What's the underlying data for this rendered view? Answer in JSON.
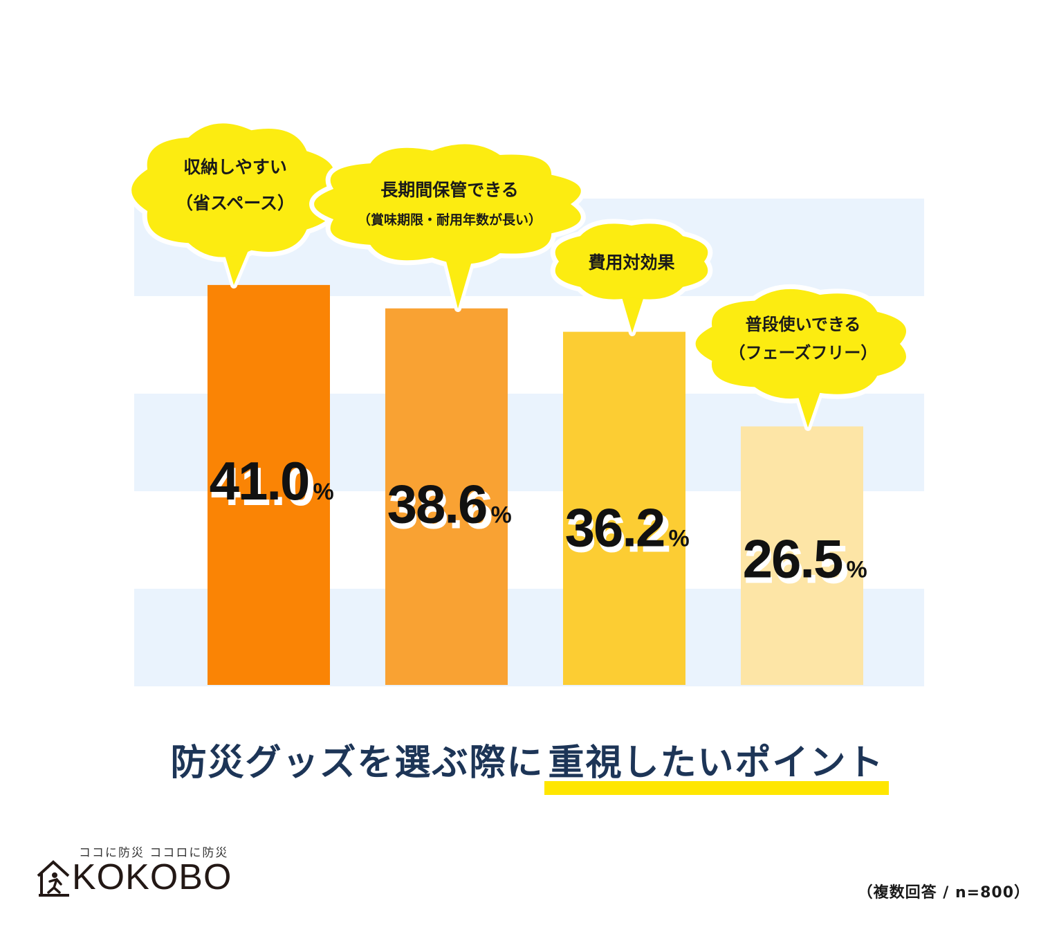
{
  "chart_data": {
    "type": "bar",
    "categories": [
      [
        "収納しやすい",
        "（省スペース）"
      ],
      [
        "長期間保管できる",
        "（賞味期限・耐用年数が長い）"
      ],
      [
        "費用対効果"
      ],
      [
        "普段使いできる",
        "（フェーズフリー）"
      ]
    ],
    "values": [
      41.0,
      38.6,
      36.2,
      26.5
    ],
    "value_labels": [
      "41.0",
      "38.6",
      "36.2",
      "26.5"
    ],
    "unit": "%",
    "bar_colors": [
      "#fa8405",
      "#f9a233",
      "#fccd33",
      "#fde5a6"
    ],
    "bubble_color": "#fcec11",
    "band_color": "#eaf3fd",
    "text_color": "#111111"
  },
  "title": {
    "part1": "防災グッズを選ぶ際に",
    "part2": "重視したいポイント",
    "color": "#1d3557",
    "highlight_color": "#ffe600"
  },
  "logo": {
    "tagline": "ココに防災 ココロに防災",
    "wordmark": "KOKOBO"
  },
  "footnote": "（複数回答 / n=800）"
}
